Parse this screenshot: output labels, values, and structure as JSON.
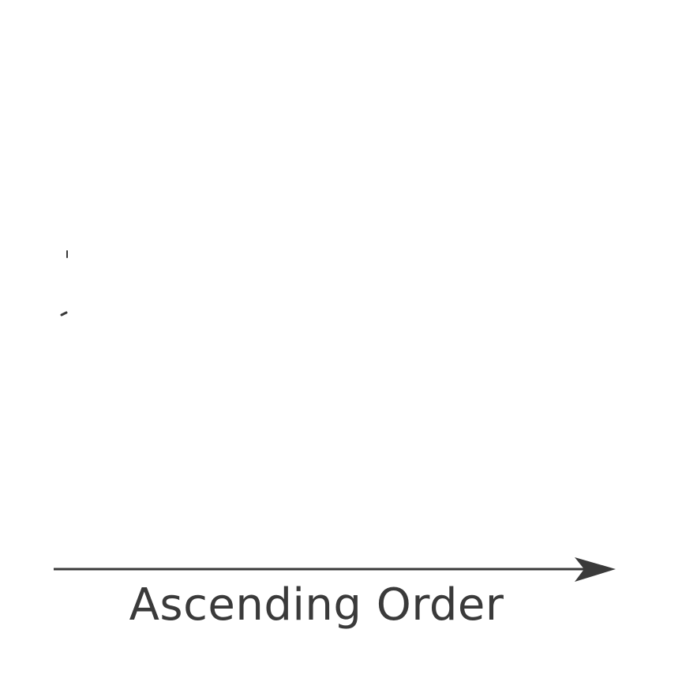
{
  "diagram": {
    "axis_label": "Ascending Order",
    "colors": {
      "background": "#ffffff",
      "ink": "#3a3a3a"
    },
    "icons": {
      "arrow": "arrow-right-icon"
    }
  }
}
